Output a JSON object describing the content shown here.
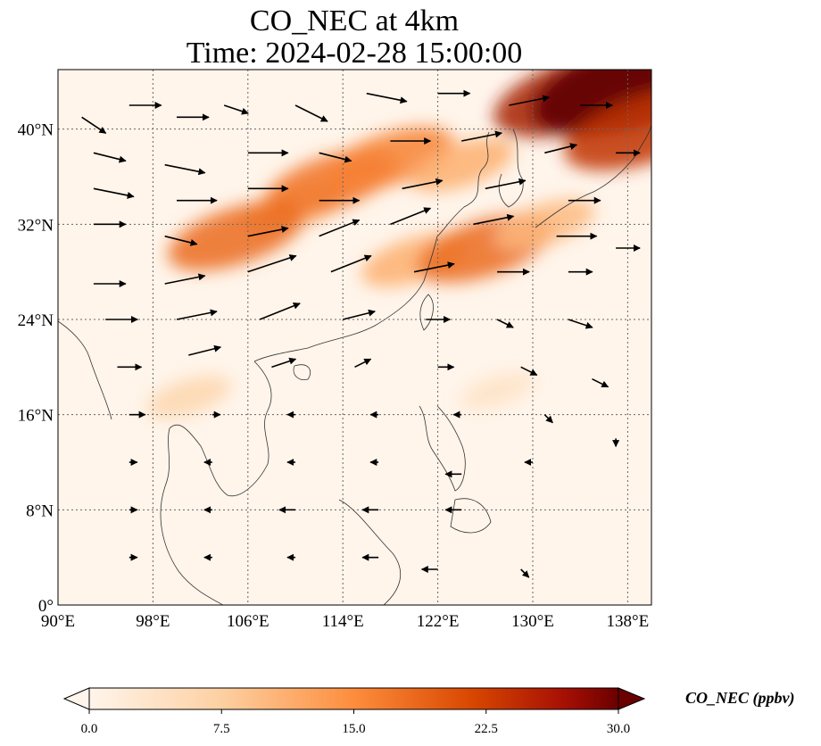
{
  "title": {
    "line1": "CO_NEC at 4km",
    "line2": "Time: 2024-02-28 15:00:00"
  },
  "map": {
    "lon_range": [
      90,
      140
    ],
    "lat_range": [
      0,
      45
    ],
    "lon_ticks": [
      {
        "value": 90,
        "label": "90°E"
      },
      {
        "value": 98,
        "label": "98°E"
      },
      {
        "value": 106,
        "label": "106°E"
      },
      {
        "value": 114,
        "label": "114°E"
      },
      {
        "value": 122,
        "label": "122°E"
      },
      {
        "value": 130,
        "label": "130°E"
      },
      {
        "value": 138,
        "label": "138°E"
      }
    ],
    "lat_ticks": [
      {
        "value": 0,
        "label": "0°"
      },
      {
        "value": 8,
        "label": "8°N"
      },
      {
        "value": 16,
        "label": "16°N"
      },
      {
        "value": 24,
        "label": "24°N"
      },
      {
        "value": 32,
        "label": "32°N"
      },
      {
        "value": 40,
        "label": "40°N"
      }
    ],
    "gridlines": true,
    "background_color": "#fff5eb"
  },
  "plumes": [
    {
      "lon": 110,
      "lat": 33.5,
      "value": 9
    },
    {
      "lon": 113,
      "lat": 35.5,
      "value": 14
    },
    {
      "lon": 105,
      "lat": 31,
      "value": 15
    },
    {
      "lon": 118,
      "lat": 37.5,
      "value": 13
    },
    {
      "lon": 124,
      "lat": 37,
      "value": 9
    },
    {
      "lon": 120,
      "lat": 29,
      "value": 9
    },
    {
      "lon": 126,
      "lat": 30,
      "value": 15
    },
    {
      "lon": 131,
      "lat": 32,
      "value": 8
    },
    {
      "lon": 134,
      "lat": 43,
      "value": 22
    },
    {
      "lon": 139,
      "lat": 44,
      "value": 30
    },
    {
      "lon": 139.5,
      "lat": 40,
      "value": 20
    },
    {
      "lon": 101,
      "lat": 17.5,
      "value": 5
    },
    {
      "lon": 127,
      "lat": 18,
      "value": 3
    }
  ],
  "wind_vectors": [
    {
      "lon": 92,
      "lat": 41,
      "u": 3,
      "v": -2
    },
    {
      "lon": 96,
      "lat": 42,
      "u": 4,
      "v": 0
    },
    {
      "lon": 100,
      "lat": 41,
      "u": 4,
      "v": 0
    },
    {
      "lon": 104,
      "lat": 42,
      "u": 3,
      "v": -1
    },
    {
      "lon": 110,
      "lat": 42,
      "u": 4,
      "v": -2
    },
    {
      "lon": 116,
      "lat": 43,
      "u": 5,
      "v": -1
    },
    {
      "lon": 122,
      "lat": 43,
      "u": 4,
      "v": 0
    },
    {
      "lon": 128,
      "lat": 42,
      "u": 5,
      "v": 1
    },
    {
      "lon": 134,
      "lat": 42,
      "u": 4,
      "v": 0
    },
    {
      "lon": 93,
      "lat": 38,
      "u": 4,
      "v": -1
    },
    {
      "lon": 99,
      "lat": 37,
      "u": 5,
      "v": -1
    },
    {
      "lon": 106,
      "lat": 38,
      "u": 5,
      "v": 0
    },
    {
      "lon": 112,
      "lat": 38,
      "u": 4,
      "v": -1
    },
    {
      "lon": 118,
      "lat": 39,
      "u": 5,
      "v": 0
    },
    {
      "lon": 124,
      "lat": 39,
      "u": 5,
      "v": 1
    },
    {
      "lon": 131,
      "lat": 38,
      "u": 4,
      "v": 1
    },
    {
      "lon": 137,
      "lat": 38,
      "u": 3,
      "v": 0
    },
    {
      "lon": 93,
      "lat": 35,
      "u": 5,
      "v": -1
    },
    {
      "lon": 100,
      "lat": 34,
      "u": 5,
      "v": 0
    },
    {
      "lon": 106,
      "lat": 35,
      "u": 5,
      "v": 0
    },
    {
      "lon": 112,
      "lat": 34,
      "u": 5,
      "v": 0
    },
    {
      "lon": 119,
      "lat": 35,
      "u": 5,
      "v": 1
    },
    {
      "lon": 126,
      "lat": 35,
      "u": 5,
      "v": 1
    },
    {
      "lon": 133,
      "lat": 34,
      "u": 4,
      "v": 0
    },
    {
      "lon": 93,
      "lat": 32,
      "u": 4,
      "v": 0
    },
    {
      "lon": 99,
      "lat": 31,
      "u": 4,
      "v": -1
    },
    {
      "lon": 106,
      "lat": 31,
      "u": 5,
      "v": 1
    },
    {
      "lon": 112,
      "lat": 31,
      "u": 5,
      "v": 2
    },
    {
      "lon": 118,
      "lat": 32,
      "u": 5,
      "v": 2
    },
    {
      "lon": 125,
      "lat": 32,
      "u": 5,
      "v": 1
    },
    {
      "lon": 132,
      "lat": 31,
      "u": 5,
      "v": 0
    },
    {
      "lon": 137,
      "lat": 30,
      "u": 3,
      "v": 0
    },
    {
      "lon": 93,
      "lat": 27,
      "u": 4,
      "v": 0
    },
    {
      "lon": 99,
      "lat": 27,
      "u": 5,
      "v": 1
    },
    {
      "lon": 106,
      "lat": 28,
      "u": 6,
      "v": 2
    },
    {
      "lon": 113,
      "lat": 28,
      "u": 5,
      "v": 2
    },
    {
      "lon": 120,
      "lat": 28,
      "u": 5,
      "v": 1
    },
    {
      "lon": 127,
      "lat": 28,
      "u": 4,
      "v": 0
    },
    {
      "lon": 133,
      "lat": 28,
      "u": 3,
      "v": 0
    },
    {
      "lon": 94,
      "lat": 24,
      "u": 4,
      "v": 0
    },
    {
      "lon": 100,
      "lat": 24,
      "u": 5,
      "v": 1
    },
    {
      "lon": 107,
      "lat": 24,
      "u": 5,
      "v": 2
    },
    {
      "lon": 114,
      "lat": 24,
      "u": 4,
      "v": 1
    },
    {
      "lon": 121,
      "lat": 24,
      "u": 3,
      "v": 0
    },
    {
      "lon": 127,
      "lat": 24,
      "u": 2,
      "v": -1
    },
    {
      "lon": 133,
      "lat": 24,
      "u": 3,
      "v": -1
    },
    {
      "lon": 95,
      "lat": 20,
      "u": 3,
      "v": 0
    },
    {
      "lon": 101,
      "lat": 21,
      "u": 4,
      "v": 1
    },
    {
      "lon": 108,
      "lat": 20,
      "u": 3,
      "v": 1
    },
    {
      "lon": 115,
      "lat": 20,
      "u": 2,
      "v": 1
    },
    {
      "lon": 122,
      "lat": 20,
      "u": 2,
      "v": 0
    },
    {
      "lon": 129,
      "lat": 20,
      "u": 2,
      "v": -1
    },
    {
      "lon": 135,
      "lat": 19,
      "u": 2,
      "v": -1
    },
    {
      "lon": 96,
      "lat": 16,
      "u": 2,
      "v": 0
    },
    {
      "lon": 103,
      "lat": 16,
      "u": 1,
      "v": 0
    },
    {
      "lon": 110,
      "lat": 16,
      "u": -1,
      "v": 0
    },
    {
      "lon": 117,
      "lat": 16,
      "u": -1,
      "v": 0
    },
    {
      "lon": 124,
      "lat": 16,
      "u": -1,
      "v": 0
    },
    {
      "lon": 131,
      "lat": 16,
      "u": 1,
      "v": -1
    },
    {
      "lon": 137,
      "lat": 14,
      "u": 0,
      "v": -1
    },
    {
      "lon": 96,
      "lat": 12,
      "u": 1,
      "v": 0
    },
    {
      "lon": 103,
      "lat": 12,
      "u": -1,
      "v": 0
    },
    {
      "lon": 110,
      "lat": 12,
      "u": -1,
      "v": 0
    },
    {
      "lon": 117,
      "lat": 12,
      "u": -1,
      "v": 0
    },
    {
      "lon": 124,
      "lat": 11,
      "u": -2,
      "v": 0
    },
    {
      "lon": 130,
      "lat": 12,
      "u": -1,
      "v": 0
    },
    {
      "lon": 96,
      "lat": 8,
      "u": 1,
      "v": 0
    },
    {
      "lon": 103,
      "lat": 8,
      "u": -1,
      "v": 0
    },
    {
      "lon": 110,
      "lat": 8,
      "u": -2,
      "v": 0
    },
    {
      "lon": 117,
      "lat": 8,
      "u": -2,
      "v": 0
    },
    {
      "lon": 124,
      "lat": 8,
      "u": -2,
      "v": 0
    },
    {
      "lon": 96,
      "lat": 4,
      "u": 1,
      "v": 0
    },
    {
      "lon": 103,
      "lat": 4,
      "u": -1,
      "v": 0
    },
    {
      "lon": 110,
      "lat": 4,
      "u": -1,
      "v": 0
    },
    {
      "lon": 117,
      "lat": 4,
      "u": -2,
      "v": 0
    },
    {
      "lon": 122,
      "lat": 3,
      "u": -2,
      "v": 0
    },
    {
      "lon": 129,
      "lat": 3,
      "u": 1,
      "v": -1
    }
  ],
  "colorbar": {
    "label": "CO_NEC (ppbv)",
    "min": 0,
    "max": 30,
    "ticks": [
      "0.0",
      "7.5",
      "15.0",
      "22.5",
      "30.0"
    ],
    "colors": [
      "#fff5eb",
      "#fdd0a2",
      "#fd8d3c",
      "#d94801",
      "#8c0a04",
      "#5a0000"
    ]
  }
}
